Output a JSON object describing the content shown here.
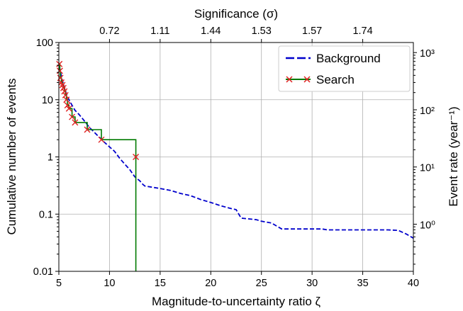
{
  "chart_data": {
    "type": "line",
    "xlabel": "Magnitude-to-uncertainty ratio ζ",
    "ylabel": "Cumulative number of events",
    "top_xlabel": "Significance (σ)",
    "right_ylabel": "Event rate (year⁻¹)",
    "xlim": [
      5,
      40
    ],
    "ylim": [
      0.01,
      100
    ],
    "yscale": "log",
    "grid": true,
    "legend_position": "top-right",
    "x_ticks": [
      "5",
      "10",
      "15",
      "20",
      "25",
      "30",
      "35",
      "40"
    ],
    "y_ticks": [
      "0.01",
      "0.1",
      "1",
      "10",
      "100"
    ],
    "top_ticks": [
      {
        "x": 10,
        "label": "0.72"
      },
      {
        "x": 15,
        "label": "1.11"
      },
      {
        "x": 20,
        "label": "1.44"
      },
      {
        "x": 25,
        "label": "1.53"
      },
      {
        "x": 30,
        "label": "1.57"
      },
      {
        "x": 35,
        "label": "1.74"
      }
    ],
    "right_ticks": [
      {
        "value": 1,
        "label": "10⁰"
      },
      {
        "value": 10,
        "label": "10¹"
      },
      {
        "value": 100,
        "label": "10²"
      },
      {
        "value": 1000,
        "label": "10³"
      }
    ],
    "right_ylim": [
      0.15,
      1500
    ],
    "series": [
      {
        "name": "Background",
        "color": "#0000cc",
        "style": "dashed",
        "points": [
          [
            5.05,
            38
          ],
          [
            5.2,
            28
          ],
          [
            5.4,
            20
          ],
          [
            5.6,
            15
          ],
          [
            5.8,
            12
          ],
          [
            6.0,
            10
          ],
          [
            6.3,
            8
          ],
          [
            6.6,
            6.5
          ],
          [
            7.0,
            5.5
          ],
          [
            7.5,
            4.3
          ],
          [
            8.0,
            3.3
          ],
          [
            8.5,
            2.7
          ],
          [
            9.0,
            2.2
          ],
          [
            9.5,
            1.8
          ],
          [
            10.0,
            1.5
          ],
          [
            10.5,
            1.25
          ],
          [
            11.0,
            0.95
          ],
          [
            11.5,
            0.75
          ],
          [
            12.0,
            0.6
          ],
          [
            12.5,
            0.45
          ],
          [
            13.0,
            0.38
          ],
          [
            13.3,
            0.33
          ],
          [
            13.5,
            0.31
          ],
          [
            15.0,
            0.28
          ],
          [
            16.0,
            0.26
          ],
          [
            17.0,
            0.23
          ],
          [
            18.0,
            0.21
          ],
          [
            19.0,
            0.18
          ],
          [
            20.0,
            0.16
          ],
          [
            21.0,
            0.14
          ],
          [
            22.0,
            0.125
          ],
          [
            22.5,
            0.12
          ],
          [
            23.0,
            0.085
          ],
          [
            24.5,
            0.08
          ],
          [
            25.0,
            0.075
          ],
          [
            26.0,
            0.07
          ],
          [
            26.5,
            0.062
          ],
          [
            27.0,
            0.055
          ],
          [
            31.0,
            0.055
          ],
          [
            31.5,
            0.053
          ],
          [
            37.5,
            0.053
          ],
          [
            38.5,
            0.052
          ],
          [
            39.3,
            0.045
          ],
          [
            40.0,
            0.038
          ]
        ]
      },
      {
        "name": "Search",
        "color": "#007a00",
        "marker_color": "#e02020",
        "style": "step",
        "points": [
          [
            5.05,
            42
          ],
          [
            5.1,
            32
          ],
          [
            5.15,
            24
          ],
          [
            5.25,
            20
          ],
          [
            5.35,
            18
          ],
          [
            5.45,
            16
          ],
          [
            5.55,
            14
          ],
          [
            5.65,
            12
          ],
          [
            5.75,
            10
          ],
          [
            5.85,
            8
          ],
          [
            6.0,
            7
          ],
          [
            6.3,
            5
          ],
          [
            6.6,
            4
          ],
          [
            7.8,
            3
          ],
          [
            9.2,
            2
          ],
          [
            12.6,
            1
          ]
        ],
        "drop_to": 0.01
      }
    ]
  }
}
